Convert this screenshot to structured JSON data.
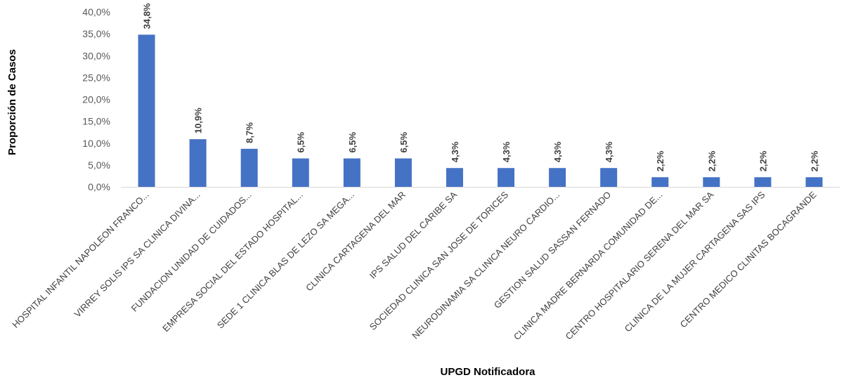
{
  "chart_data": {
    "type": "bar",
    "xlabel": "UPGD Notificadora",
    "ylabel": "Proporción de Casos",
    "ylim": [
      0,
      40
    ],
    "yticks": [
      "0,0%",
      "5,0%",
      "10,0%",
      "15,0%",
      "20,0%",
      "25,0%",
      "30,0%",
      "35,0%",
      "40,0%"
    ],
    "grid": false,
    "bar_color": "#4472C4",
    "categories": [
      "HOSPITAL INFANTIL NAPOLEON FRANCO...",
      "VIRREY  SOLIS IPS SA CLINICA DIVINA...",
      "FUNDACION UNIDAD DE CUIDADOS...",
      "EMPRESA SOCIAL DEL ESTADO HOSPITAL...",
      "SEDE 1 CLINICA BLAS DE LEZO  SA  MEGA...",
      "CLINICA  CARTAGENA DEL MAR",
      "IPS SALUD DEL CARIBE SA",
      "SOCIEDAD CLINICA SAN JOSE DE TORICES",
      "NEURODINAMIA SA CLINICA NEURO CARDIO...",
      "GESTION SALUD SASSAN FERNADO",
      "CLINICA MADRE BERNARDA COMUNIDAD DE...",
      "CENTRO HOSPITALARIO SERENA DEL MAR SA",
      "CLINICA DE LA MUJER  CARTAGENA  SAS IPS",
      "CENTRO MEDICO CLINITAS BOCAGRANDE"
    ],
    "values": [
      34.8,
      10.9,
      8.7,
      6.5,
      6.5,
      6.5,
      4.3,
      4.3,
      4.3,
      4.3,
      2.2,
      2.2,
      2.2,
      2.2
    ],
    "labels": [
      "34,8%",
      "10,9%",
      "8,7%",
      "6,5%",
      "6,5%",
      "6,5%",
      "4,3%",
      "4,3%",
      "4,3%",
      "4,3%",
      "2,2%",
      "2,2%",
      "2,2%",
      "2,2%"
    ]
  }
}
